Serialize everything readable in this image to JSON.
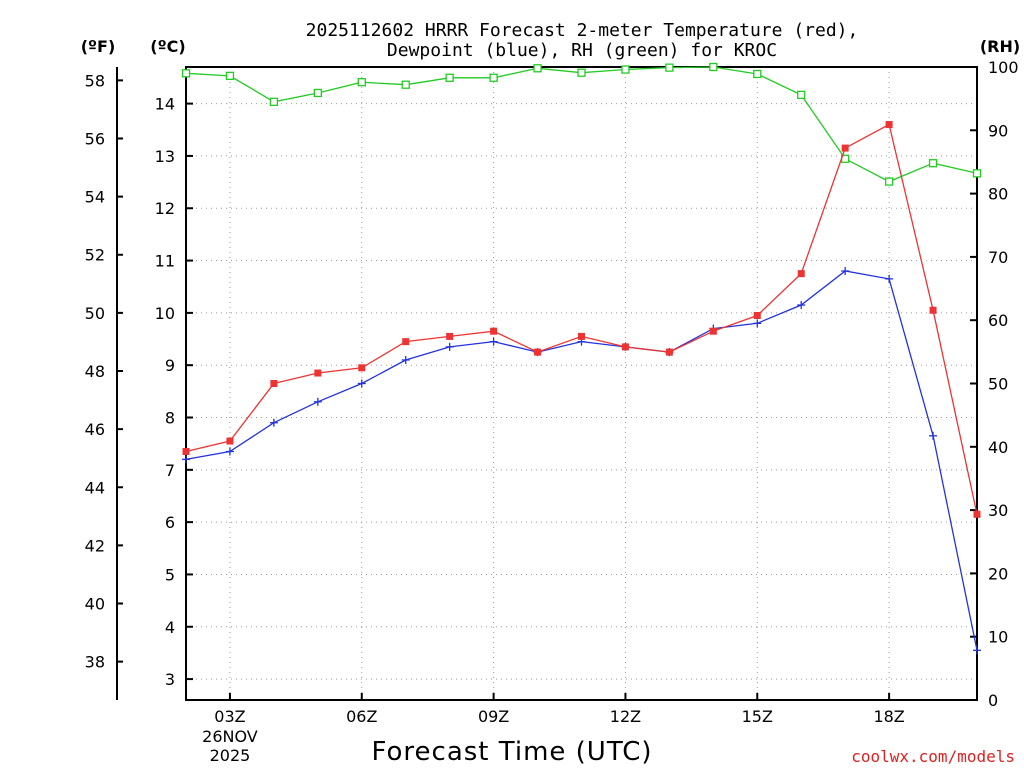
{
  "chart_data": {
    "type": "line",
    "title": [
      "2025112602 HRRR Forecast 2-meter Temperature (red),",
      "Dewpoint (blue), RH (green) for KROC"
    ],
    "xlabel": "Forecast Time (UTC)",
    "date_label": [
      "26NOV",
      "2025"
    ],
    "watermark": "coolwx.com/models",
    "left_axis_f_label": "(ºF)",
    "left_axis_c_label": "(ºC)",
    "right_axis_label": "(RH)",
    "x_hours": [
      2,
      3,
      4,
      5,
      6,
      7,
      8,
      9,
      10,
      11,
      12,
      13,
      14,
      15,
      16,
      17,
      18,
      19,
      20
    ],
    "x_range": [
      2,
      20
    ],
    "x_ticks": [
      {
        "hour": 3,
        "label": "03Z"
      },
      {
        "hour": 6,
        "label": "06Z"
      },
      {
        "hour": 9,
        "label": "09Z"
      },
      {
        "hour": 12,
        "label": "12Z"
      },
      {
        "hour": 15,
        "label": "15Z"
      },
      {
        "hour": 18,
        "label": "18Z"
      }
    ],
    "celsius_range": [
      2.6,
      14.7
    ],
    "celsius_ticks": [
      "3",
      "4",
      "5",
      "6",
      "7",
      "8",
      "9",
      "10",
      "11",
      "12",
      "13",
      "14"
    ],
    "fahrenheit_ticks": [
      "38",
      "40",
      "42",
      "44",
      "46",
      "48",
      "50",
      "52",
      "54",
      "56",
      "58"
    ],
    "rh_range": [
      0,
      100
    ],
    "rh_ticks": [
      "0",
      "10",
      "20",
      "30",
      "40",
      "50",
      "60",
      "70",
      "80",
      "90",
      "100"
    ],
    "series": [
      {
        "name": "Temperature",
        "unit": "C",
        "color": "#ee3333",
        "marker": "filled-square",
        "values": [
          7.35,
          7.55,
          8.65,
          8.85,
          8.95,
          9.45,
          9.55,
          9.65,
          9.25,
          9.55,
          9.35,
          9.25,
          9.65,
          9.95,
          10.75,
          13.15,
          13.6,
          10.05,
          6.15
        ]
      },
      {
        "name": "Dewpoint",
        "unit": "C",
        "color": "#2233dd",
        "marker": "plus",
        "values": [
          7.2,
          7.35,
          7.9,
          8.3,
          8.65,
          9.1,
          9.35,
          9.45,
          9.25,
          9.45,
          9.35,
          9.25,
          9.7,
          9.8,
          10.15,
          10.8,
          10.65,
          7.65,
          3.55
        ]
      },
      {
        "name": "RH",
        "unit": "%",
        "color": "#22cc22",
        "marker": "open-square",
        "values": [
          99,
          98.6,
          94.5,
          95.9,
          97.6,
          97.2,
          98.3,
          98.3,
          99.8,
          99.1,
          99.6,
          99.9,
          100,
          98.9,
          95.6,
          85.5,
          81.9,
          84.8,
          83.2
        ]
      }
    ]
  }
}
